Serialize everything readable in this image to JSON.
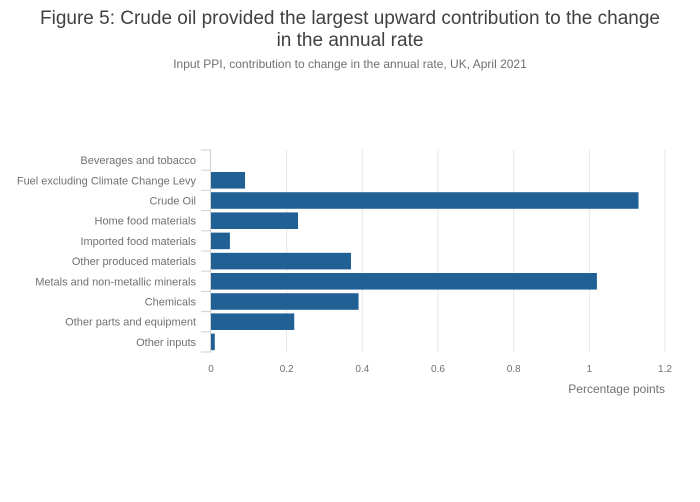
{
  "header": {
    "title_line1": "Figure 5: Crude oil provided the largest upward contribution to the change",
    "title_line2": "in the annual rate",
    "subtitle": "Input PPI, contribution to change in the annual rate, UK, April 2021"
  },
  "chart_data": {
    "type": "bar",
    "orientation": "horizontal",
    "title": "Figure 5: Crude oil provided the largest upward contribution to the change in the annual rate",
    "subtitle": "Input PPI, contribution to change in the annual rate, UK, April 2021",
    "xlabel": "Percentage points",
    "ylabel": "",
    "categories": [
      "Beverages and tobacco",
      "Fuel excluding Climate Change Levy",
      "Crude Oil",
      "Home food materials",
      "Imported food materials",
      "Other produced materials",
      "Metals and non-metallic minerals",
      "Chemicals",
      "Other parts and equipment",
      "Other inputs"
    ],
    "values": [
      0.0,
      0.09,
      1.13,
      0.23,
      0.05,
      0.37,
      1.02,
      0.39,
      0.22,
      0.01
    ],
    "xlim": [
      0,
      1.2
    ],
    "xticks": [
      0,
      0.2,
      0.4,
      0.6,
      0.8,
      1,
      1.2
    ],
    "xtick_labels": [
      "0",
      "0.2",
      "0.4",
      "0.6",
      "0.8",
      "1",
      "1.2"
    ],
    "grid": true,
    "bar_color": "#206095",
    "grid_color": "#e6e6e6"
  }
}
